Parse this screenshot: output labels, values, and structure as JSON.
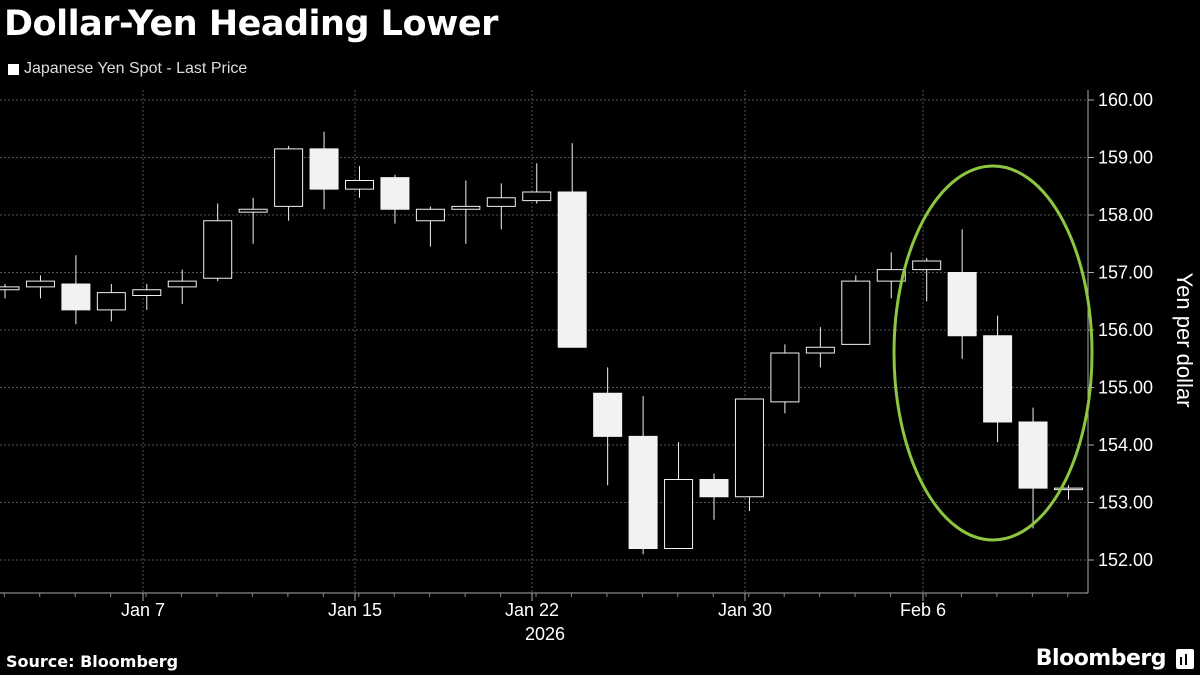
{
  "title": "Dollar-Yen Heading Lower",
  "source": "Source: Bloomberg",
  "brand": "Bloomberg",
  "colors": {
    "background": "#000000",
    "candle": "#f2f2f2",
    "grid": "#555555",
    "highlight": "#8dc63f"
  },
  "chart_data": {
    "type": "candlestick",
    "legend": [
      "Japanese Yen Spot - Last Price"
    ],
    "ylabel": "Yen per dollar",
    "ylim": [
      151.5,
      160.2
    ],
    "yticks": [
      "160.00",
      "159.00",
      "158.00",
      "157.00",
      "156.00",
      "155.00",
      "154.00",
      "153.00",
      "152.00"
    ],
    "xticks": [
      "Jan 7",
      "Jan 15",
      "Jan 22",
      "Jan 30",
      "Feb 6"
    ],
    "year_label": "2026",
    "candles": [
      {
        "o": 156.7,
        "h": 156.8,
        "l": 156.55,
        "c": 156.75
      },
      {
        "o": 156.75,
        "h": 156.95,
        "l": 156.55,
        "c": 156.85
      },
      {
        "o": 156.8,
        "h": 157.3,
        "l": 156.1,
        "c": 156.35
      },
      {
        "o": 156.35,
        "h": 156.8,
        "l": 156.15,
        "c": 156.65
      },
      {
        "o": 156.6,
        "h": 156.8,
        "l": 156.35,
        "c": 156.7
      },
      {
        "o": 156.75,
        "h": 157.05,
        "l": 156.45,
        "c": 156.85
      },
      {
        "o": 156.9,
        "h": 158.2,
        "l": 156.85,
        "c": 157.9
      },
      {
        "o": 158.05,
        "h": 158.3,
        "l": 157.5,
        "c": 158.1
      },
      {
        "o": 158.15,
        "h": 159.2,
        "l": 157.9,
        "c": 159.15
      },
      {
        "o": 159.15,
        "h": 159.45,
        "l": 158.1,
        "c": 158.45
      },
      {
        "o": 158.45,
        "h": 158.85,
        "l": 158.3,
        "c": 158.6
      },
      {
        "o": 158.65,
        "h": 158.7,
        "l": 157.85,
        "c": 158.1
      },
      {
        "o": 157.9,
        "h": 158.15,
        "l": 157.45,
        "c": 158.1
      },
      {
        "o": 158.1,
        "h": 158.6,
        "l": 157.5,
        "c": 158.15
      },
      {
        "o": 158.15,
        "h": 158.55,
        "l": 157.75,
        "c": 158.3
      },
      {
        "o": 158.25,
        "h": 158.9,
        "l": 158.2,
        "c": 158.4
      },
      {
        "o": 158.4,
        "h": 159.25,
        "l": 155.7,
        "c": 155.7
      },
      {
        "o": 154.9,
        "h": 155.35,
        "l": 153.3,
        "c": 154.15
      },
      {
        "o": 154.15,
        "h": 154.85,
        "l": 152.1,
        "c": 152.2
      },
      {
        "o": 152.2,
        "h": 154.05,
        "l": 152.2,
        "c": 153.4
      },
      {
        "o": 153.4,
        "h": 153.5,
        "l": 152.7,
        "c": 153.1
      },
      {
        "o": 153.1,
        "h": 154.8,
        "l": 152.85,
        "c": 154.8
      },
      {
        "o": 154.75,
        "h": 155.75,
        "l": 154.55,
        "c": 155.6
      },
      {
        "o": 155.6,
        "h": 156.05,
        "l": 155.35,
        "c": 155.7
      },
      {
        "o": 155.75,
        "h": 156.95,
        "l": 155.75,
        "c": 156.85
      },
      {
        "o": 156.85,
        "h": 157.35,
        "l": 156.55,
        "c": 157.05
      },
      {
        "o": 157.05,
        "h": 157.25,
        "l": 156.5,
        "c": 157.2
      },
      {
        "o": 157.0,
        "h": 157.75,
        "l": 155.5,
        "c": 155.9
      },
      {
        "o": 155.9,
        "h": 156.25,
        "l": 154.05,
        "c": 154.4
      },
      {
        "o": 154.4,
        "h": 154.65,
        "l": 152.55,
        "c": 153.25
      },
      {
        "o": 153.25,
        "h": 153.3,
        "l": 153.05,
        "c": 153.25
      }
    ]
  }
}
